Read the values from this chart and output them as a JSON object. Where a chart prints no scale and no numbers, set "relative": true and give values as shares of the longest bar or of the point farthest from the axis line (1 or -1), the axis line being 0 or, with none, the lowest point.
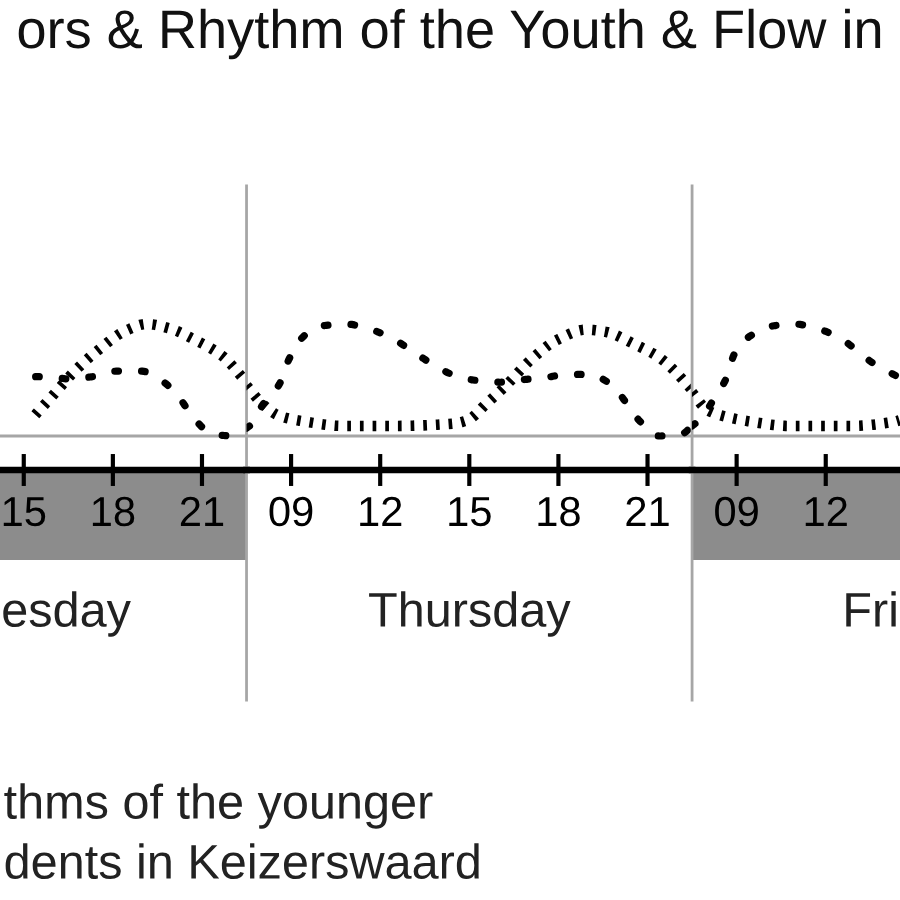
{
  "chart_data": [
    {
      "type": "line",
      "relative": true,
      "title": "ors & Rhythm of the Youth & Flow in",
      "annotations": [
        "thms of the younger",
        "dents in Keizerswaard"
      ],
      "xlim": [
        14.2,
        22.5
      ],
      "xticks": [
        15,
        18,
        21
      ],
      "xlabel": "esday",
      "series": [
        {
          "color": "#000000",
          "line_style": "dashed",
          "x": [
            15.4,
            15.84,
            16.49,
            17.33,
            18.17,
            18.94,
            19.72,
            20.24,
            20.75,
            21.34,
            22.05,
            22.5
          ],
          "values": [
            0.53,
            0.53,
            0.51,
            0.53,
            0.58,
            0.58,
            0.48,
            0.34,
            0.15,
            0.02,
            0,
            0.07
          ]
        },
        {
          "color": "#000000",
          "line_style": "dotted",
          "x": [
            15.39,
            16.04,
            16.68,
            17.52,
            18.43,
            19.14,
            19.91,
            20.75,
            21.66,
            22.5
          ],
          "values": [
            0.19,
            0.38,
            0.57,
            0.77,
            0.94,
            1.0,
            0.96,
            0.86,
            0.72,
            0.48
          ]
        }
      ]
    },
    {
      "type": "line",
      "relative": true,
      "xlim": [
        7.5,
        22.5
      ],
      "xticks": [
        {
          "value": 9,
          "label": "09"
        },
        12,
        15,
        18,
        21
      ],
      "xlabel": "Thursday",
      "series": [
        {
          "color": "#000000",
          "line_style": "dashed",
          "x": [
            7.5,
            7.69,
            8.02,
            8.6,
            8.92,
            9.31,
            9.96,
            10.86,
            11.57,
            12.35,
            13.12,
            13.77,
            14.42,
            15.13,
            16.03,
            16.68,
            17.52,
            18.3,
            19.0,
            19.78,
            20.3,
            20.75,
            21.4,
            22.17,
            22.5
          ],
          "values": [
            0.07,
            0.11,
            0.27,
            0.46,
            0.68,
            0.86,
            0.98,
            1.0,
            0.96,
            0.88,
            0.75,
            0.64,
            0.55,
            0.5,
            0.48,
            0.5,
            0.52,
            0.55,
            0.55,
            0.46,
            0.29,
            0.13,
            0,
            0.02,
            0.09
          ]
        },
        {
          "color": "#000000",
          "line_style": "dotted",
          "x": [
            7.5,
            8.02,
            8.6,
            9.44,
            10.73,
            12.48,
            14.42,
            14.93,
            15.58,
            16.23,
            17.07,
            17.97,
            18.94,
            19.59,
            20.56,
            21.4,
            22.37,
            22.5
          ],
          "values": [
            0.45,
            0.29,
            0.18,
            0.13,
            0.09,
            0.09,
            0.11,
            0.14,
            0.29,
            0.45,
            0.68,
            0.86,
            0.95,
            0.93,
            0.82,
            0.7,
            0.45,
            0.41
          ]
        }
      ]
    },
    {
      "type": "line",
      "relative": true,
      "xlim": [
        7.5,
        14.5
      ],
      "xticks": [
        {
          "value": 9,
          "label": "09"
        },
        12
      ],
      "xlabel": "Fri",
      "series": [
        {
          "color": "#000000",
          "line_style": "dashed",
          "x": [
            7.5,
            7.82,
            8.21,
            8.66,
            8.92,
            9.44,
            10.16,
            10.94,
            11.71,
            12.43,
            13.71,
            14.35,
            14.48
          ],
          "values": [
            0.09,
            0.16,
            0.32,
            0.52,
            0.73,
            0.89,
            0.98,
            1.0,
            0.96,
            0.88,
            0.63,
            0.54,
            0.52
          ]
        },
        {
          "color": "#000000",
          "line_style": "dotted",
          "x": [
            7.5,
            8.02,
            8.53,
            9.44,
            10.73,
            12.86,
            14.35,
            14.48
          ],
          "values": [
            0.39,
            0.23,
            0.18,
            0.13,
            0.09,
            0.09,
            0.13,
            0.14
          ]
        }
      ]
    }
  ]
}
